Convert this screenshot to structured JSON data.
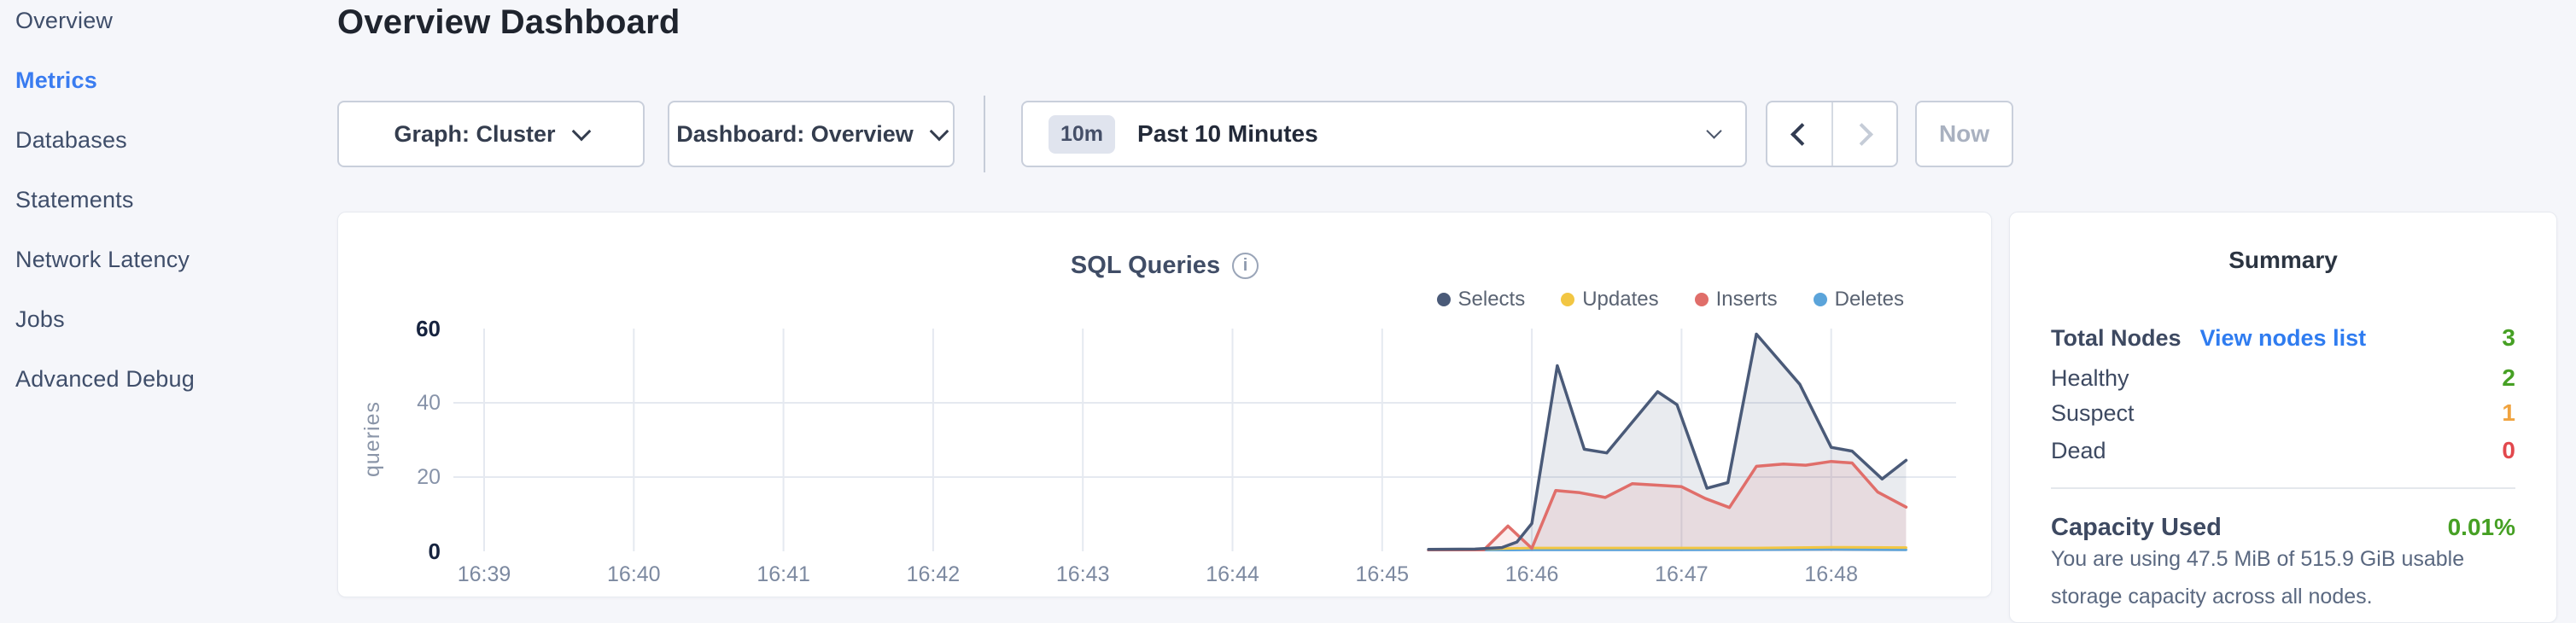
{
  "sidebar": {
    "items": [
      {
        "label": "Overview",
        "active": false
      },
      {
        "label": "Metrics",
        "active": true
      },
      {
        "label": "Databases",
        "active": false
      },
      {
        "label": "Statements",
        "active": false
      },
      {
        "label": "Network Latency",
        "active": false
      },
      {
        "label": "Jobs",
        "active": false
      },
      {
        "label": "Advanced Debug",
        "active": false
      }
    ]
  },
  "header": {
    "title": "Overview Dashboard"
  },
  "toolbar": {
    "graph_dropdown": {
      "label": "Graph: Cluster"
    },
    "dashboard_dropdown": {
      "label": "Dashboard: Overview"
    },
    "time_picker": {
      "badge": "10m",
      "label": "Past 10 Minutes"
    },
    "now_button": "Now"
  },
  "chart_data": {
    "type": "area",
    "title": "SQL Queries",
    "ylabel": "queries",
    "x_axis": {
      "unit": "time of day",
      "tick_labels": [
        "16:39",
        "16:40",
        "16:41",
        "16:42",
        "16:43",
        "16:44",
        "16:45",
        "16:46",
        "16:47",
        "16:48"
      ],
      "tick_positions_minutes": [
        0,
        1,
        2,
        3,
        4,
        5,
        6,
        7,
        8,
        9
      ],
      "range_minutes": [
        -0.21,
        9.83
      ]
    },
    "y_axis": {
      "ticks": [
        0,
        20,
        40,
        60
      ],
      "emphasized_ticks": [
        0,
        60
      ],
      "range": [
        0,
        60
      ]
    },
    "grid": {
      "horizontal_at": [
        20,
        40
      ],
      "vertical_at_each_minute": true,
      "color": "#e5e9f0"
    },
    "legend_position": "top-right",
    "series": [
      {
        "name": "Selects",
        "color": "#4a5a78",
        "fill": "rgba(74,90,120,0.12)",
        "stroke_width": 3.5,
        "points_minutes_value": [
          [
            6.31,
            0.5
          ],
          [
            6.62,
            0.6
          ],
          [
            6.8,
            1.0
          ],
          [
            6.9,
            2.5
          ],
          [
            7.0,
            7.5
          ],
          [
            7.17,
            50
          ],
          [
            7.35,
            27.5
          ],
          [
            7.5,
            26.5
          ],
          [
            7.84,
            43
          ],
          [
            7.97,
            39.5
          ],
          [
            8.17,
            17
          ],
          [
            8.31,
            18.5
          ],
          [
            8.5,
            58.5
          ],
          [
            8.79,
            45
          ],
          [
            9.0,
            28
          ],
          [
            9.14,
            27
          ],
          [
            9.34,
            19.5
          ],
          [
            9.5,
            24.5
          ]
        ]
      },
      {
        "name": "Updates",
        "color": "#f2c643",
        "fill": "none",
        "stroke_width": 3,
        "points_minutes_value": [
          [
            6.31,
            0.3
          ],
          [
            7.0,
            0.9
          ],
          [
            7.5,
            0.9
          ],
          [
            8.0,
            0.9
          ],
          [
            8.5,
            0.9
          ],
          [
            9.0,
            1.1
          ],
          [
            9.5,
            1.0
          ]
        ]
      },
      {
        "name": "Inserts",
        "color": "#e06e6a",
        "fill": "rgba(224,110,106,0.12)",
        "stroke_width": 3.5,
        "points_minutes_value": [
          [
            6.31,
            0.3
          ],
          [
            6.68,
            0.4
          ],
          [
            6.84,
            6.8
          ],
          [
            7.0,
            0.8
          ],
          [
            7.16,
            16.4
          ],
          [
            7.32,
            15.8
          ],
          [
            7.49,
            14.5
          ],
          [
            7.67,
            18.2
          ],
          [
            7.85,
            17.8
          ],
          [
            8.0,
            17.4
          ],
          [
            8.16,
            14.2
          ],
          [
            8.32,
            11.8
          ],
          [
            8.5,
            22.9
          ],
          [
            8.68,
            23.5
          ],
          [
            8.83,
            23.2
          ],
          [
            9.0,
            24.2
          ],
          [
            9.14,
            23.8
          ],
          [
            9.31,
            16.0
          ],
          [
            9.5,
            11.9
          ]
        ]
      },
      {
        "name": "Deletes",
        "color": "#5ba4da",
        "fill": "none",
        "stroke_width": 3,
        "points_minutes_value": [
          [
            6.31,
            0.2
          ],
          [
            7.0,
            0.4
          ],
          [
            8.0,
            0.4
          ],
          [
            9.0,
            0.5
          ],
          [
            9.5,
            0.4
          ]
        ]
      }
    ]
  },
  "summary": {
    "title": "Summary",
    "total_nodes": {
      "label": "Total Nodes",
      "link": "View nodes list",
      "value": "3"
    },
    "statuses": [
      {
        "label": "Healthy",
        "value": "2",
        "color_class": "c-green"
      },
      {
        "label": "Suspect",
        "value": "1",
        "color_class": "c-orange"
      },
      {
        "label": "Dead",
        "value": "0",
        "color_class": "c-red"
      }
    ],
    "capacity": {
      "label": "Capacity Used",
      "value": "0.01%",
      "description": "You are using 47.5 MiB of 515.9 GiB usable storage capacity across all nodes."
    }
  }
}
